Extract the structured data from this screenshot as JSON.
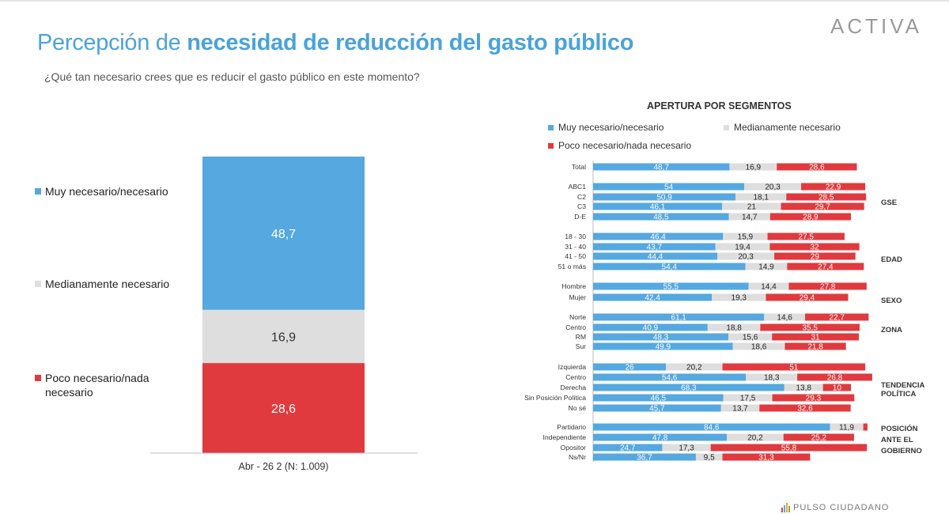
{
  "header": {
    "title_light": "Percepción de",
    "title_bold": "necesidad de reducción del gasto público",
    "question": "¿Qué tan necesario crees que es reducir el gasto público en este momento?",
    "logo": "ACTIVA"
  },
  "colors": {
    "muy": "#55a8e0",
    "medio": "#dedede",
    "poco": "#e03a3e",
    "title": "#4aa3d8"
  },
  "footer": {
    "text": "PULSO CIUDADANO"
  },
  "chart_data": [
    {
      "type": "bar",
      "stacked": true,
      "categories": [
        "Abr - 26 2 (N: 1.009)"
      ],
      "series": [
        {
          "name": "Muy necesario/necesario",
          "values": [
            48.7
          ],
          "labels": [
            "48,7"
          ]
        },
        {
          "name": "Medianamente necesario",
          "values": [
            16.9
          ],
          "labels": [
            "16,9"
          ]
        },
        {
          "name": "Poco necesario/nada necesario",
          "values": [
            28.6
          ],
          "labels": [
            "28,6"
          ]
        }
      ],
      "legend": "left"
    },
    {
      "type": "bar",
      "orientation": "horizontal",
      "stacked": true,
      "title": "APERTURA POR SEGMENTOS",
      "legend": [
        "Muy necesario/necesario",
        "Medianamente necesario",
        "Poco necesario/nada necesario"
      ],
      "groups": [
        {
          "label": "",
          "rows": [
            {
              "label": "Total",
              "values": [
                48.7,
                16.9,
                28.6
              ],
              "labels": [
                "48,7",
                "16,9",
                "28,6"
              ]
            }
          ]
        },
        {
          "label": "GSE",
          "rows": [
            {
              "label": "ABC1",
              "values": [
                54,
                20.3,
                22.9
              ],
              "labels": [
                "54",
                "20,3",
                "22,9"
              ]
            },
            {
              "label": "C2",
              "values": [
                50.9,
                18.1,
                28.5
              ],
              "labels": [
                "50,9",
                "18,1",
                "28,5"
              ]
            },
            {
              "label": "C3",
              "values": [
                46.1,
                21,
                29.7
              ],
              "labels": [
                "46,1",
                "21",
                "29,7"
              ]
            },
            {
              "label": "D-E",
              "values": [
                48.5,
                14.7,
                28.9
              ],
              "labels": [
                "48,5",
                "14,7",
                "28,9"
              ]
            }
          ]
        },
        {
          "label": "EDAD",
          "rows": [
            {
              "label": "18 - 30",
              "values": [
                46.4,
                15.9,
                27.5
              ],
              "labels": [
                "46,4",
                "15,9",
                "27,5"
              ]
            },
            {
              "label": "31 - 40",
              "values": [
                43.7,
                19.4,
                32
              ],
              "labels": [
                "43,7",
                "19,4",
                "32"
              ]
            },
            {
              "label": "41 - 50",
              "values": [
                44.4,
                20.3,
                29
              ],
              "labels": [
                "44,4",
                "20,3",
                "29"
              ]
            },
            {
              "label": "51 o más",
              "values": [
                54.4,
                14.9,
                27.4
              ],
              "labels": [
                "54,4",
                "14,9",
                "27,4"
              ]
            }
          ]
        },
        {
          "label": "SEXO",
          "rows": [
            {
              "label": "Hombre",
              "values": [
                55.5,
                14.4,
                27.8
              ],
              "labels": [
                "55,5",
                "14,4",
                "27,8"
              ]
            },
            {
              "label": "Mujer",
              "values": [
                42.4,
                19.3,
                29.4
              ],
              "labels": [
                "42,4",
                "19,3",
                "29,4"
              ]
            }
          ]
        },
        {
          "label": "ZONA",
          "rows": [
            {
              "label": "Norte",
              "values": [
                61.1,
                14.6,
                22.7
              ],
              "labels": [
                "61,1",
                "14,6",
                "22,7"
              ]
            },
            {
              "label": "Centro",
              "values": [
                40.9,
                18.8,
                35.5
              ],
              "labels": [
                "40,9",
                "18,8",
                "35,5"
              ]
            },
            {
              "label": "RM",
              "values": [
                48.3,
                15.6,
                31
              ],
              "labels": [
                "48,3",
                "15,6",
                "31"
              ]
            },
            {
              "label": "Sur",
              "values": [
                49.9,
                18.6,
                21.8
              ],
              "labels": [
                "49,9",
                "18,6",
                "21,8"
              ]
            }
          ]
        },
        {
          "label": "TENDENCIA POLÍTICA",
          "label_lines": [
            "TENDENCIA",
            "POLÍTICA"
          ],
          "rows": [
            {
              "label": "Izquierda",
              "values": [
                26,
                20.2,
                51
              ],
              "labels": [
                "26",
                "20,2",
                "51"
              ]
            },
            {
              "label": "Centro",
              "values": [
                54.6,
                18.3,
                26.8
              ],
              "labels": [
                "54,6",
                "18,3",
                "26,8"
              ]
            },
            {
              "label": "Derecha",
              "values": [
                68.3,
                13.8,
                10
              ],
              "labels": [
                "68,3",
                "13,8",
                "10"
              ]
            },
            {
              "label": "Sin Posición Política",
              "values": [
                46.5,
                17.5,
                29.3
              ],
              "labels": [
                "46,5",
                "17,5",
                "29,3"
              ]
            },
            {
              "label": "No sé",
              "values": [
                45.7,
                13.7,
                32.6
              ],
              "labels": [
                "45,7",
                "13,7",
                "32,6"
              ]
            }
          ]
        },
        {
          "label": "POSICIÓN ANTE EL GOBIERNO",
          "label_lines": [
            "POSICIÓN",
            "ANTE EL",
            "GOBIERNO"
          ],
          "rows": [
            {
              "label": "Partidario",
              "values": [
                84.6,
                11.9,
                1.5
              ],
              "labels": [
                "84,6",
                "11,9",
                ""
              ]
            },
            {
              "label": "Independiente",
              "values": [
                47.8,
                20.2,
                25.2
              ],
              "labels": [
                "47,8",
                "20,2",
                "25,2"
              ]
            },
            {
              "label": "Opositor",
              "values": [
                24.7,
                17.3,
                55.8
              ],
              "labels": [
                "24,7",
                "17,3",
                "55,8"
              ]
            },
            {
              "label": "Ns/Nr",
              "values": [
                36.7,
                9.5,
                31.3
              ],
              "labels": [
                "36,7",
                "9,5",
                "31,3"
              ]
            }
          ]
        }
      ]
    }
  ]
}
